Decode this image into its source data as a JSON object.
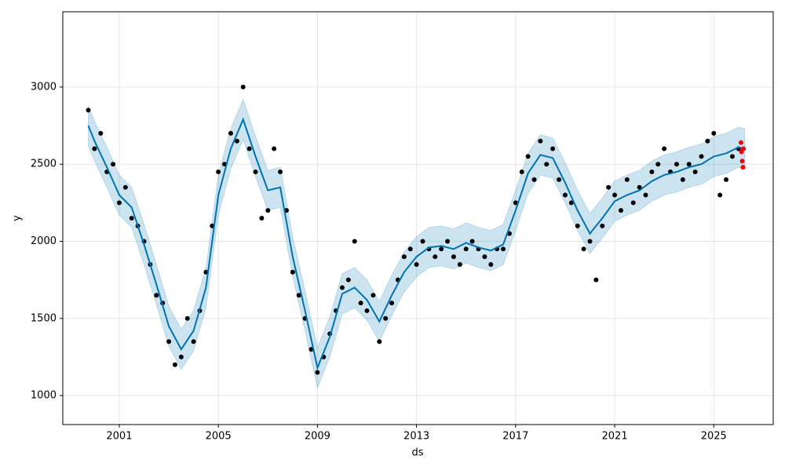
{
  "chart_data": {
    "type": "forecast",
    "xlabel": "ds",
    "ylabel": "y",
    "xlim": [
      1998.72,
      2027.4
    ],
    "ylim": [
      812,
      3488
    ],
    "xticks": [
      2001,
      2005,
      2009,
      2013,
      2017,
      2021,
      2025
    ],
    "yticks": [
      1000,
      1500,
      2000,
      2500,
      3000
    ],
    "grid": true,
    "x": [
      1999.75,
      2000,
      2000.5,
      2001,
      2001.5,
      2002,
      2002.5,
      2003,
      2003.5,
      2004,
      2004.5,
      2005,
      2005.5,
      2006,
      2006.5,
      2007,
      2007.5,
      2008,
      2008.5,
      2009,
      2009.5,
      2010,
      2010.5,
      2011,
      2011.5,
      2012,
      2012.5,
      2013,
      2013.5,
      2014,
      2014.5,
      2015,
      2015.5,
      2016,
      2016.5,
      2017,
      2017.5,
      2018,
      2018.5,
      2019,
      2019.5,
      2020,
      2020.5,
      2021,
      2021.5,
      2022,
      2022.5,
      2023,
      2023.5,
      2024,
      2024.5,
      2025,
      2025.5,
      2026,
      2026.25
    ],
    "yhat": {
      "color": "#0072b2",
      "values": [
        2750,
        2650,
        2480,
        2300,
        2220,
        1980,
        1720,
        1450,
        1300,
        1420,
        1700,
        2300,
        2600,
        2790,
        2550,
        2330,
        2350,
        1900,
        1550,
        1180,
        1380,
        1660,
        1700,
        1620,
        1480,
        1650,
        1800,
        1900,
        1960,
        1970,
        1950,
        1990,
        1960,
        1940,
        1980,
        2200,
        2440,
        2560,
        2540,
        2380,
        2200,
        2050,
        2150,
        2260,
        2300,
        2330,
        2390,
        2430,
        2450,
        2480,
        2500,
        2550,
        2570,
        2610,
        2600
      ]
    },
    "band": {
      "color": "#0072b2",
      "opacity": 0.2,
      "lower": [
        2620,
        2520,
        2350,
        2170,
        2090,
        1850,
        1590,
        1320,
        1170,
        1290,
        1570,
        2170,
        2470,
        2660,
        2420,
        2200,
        2220,
        1770,
        1420,
        1050,
        1250,
        1530,
        1570,
        1490,
        1350,
        1520,
        1670,
        1770,
        1830,
        1840,
        1820,
        1860,
        1830,
        1810,
        1850,
        2070,
        2310,
        2430,
        2410,
        2250,
        2070,
        1920,
        2020,
        2130,
        2170,
        2200,
        2260,
        2300,
        2320,
        2350,
        2370,
        2420,
        2440,
        2480,
        2470
      ],
      "upper": [
        2880,
        2780,
        2610,
        2430,
        2350,
        2110,
        1850,
        1580,
        1430,
        1550,
        1830,
        2430,
        2730,
        2920,
        2680,
        2460,
        2480,
        2030,
        1680,
        1310,
        1510,
        1790,
        1830,
        1750,
        1610,
        1780,
        1930,
        2030,
        2090,
        2100,
        2080,
        2120,
        2090,
        2070,
        2110,
        2330,
        2570,
        2690,
        2670,
        2510,
        2330,
        2180,
        2280,
        2390,
        2430,
        2460,
        2520,
        2560,
        2580,
        2610,
        2630,
        2680,
        2700,
        2740,
        2730
      ]
    },
    "observed": {
      "color": "#000000",
      "x": [
        1999.75,
        2000,
        2000.25,
        2000.5,
        2000.75,
        2001,
        2001.25,
        2001.5,
        2001.75,
        2002,
        2002.25,
        2002.5,
        2002.75,
        2003,
        2003.25,
        2003.5,
        2003.75,
        2004,
        2004.25,
        2004.5,
        2004.75,
        2005,
        2005.25,
        2005.5,
        2005.75,
        2006,
        2006.25,
        2006.5,
        2006.75,
        2007,
        2007.25,
        2007.5,
        2007.75,
        2008,
        2008.25,
        2008.5,
        2008.75,
        2009,
        2009.25,
        2009.5,
        2009.75,
        2010,
        2010.25,
        2010.5,
        2010.75,
        2011,
        2011.25,
        2011.5,
        2011.75,
        2012,
        2012.25,
        2012.5,
        2012.75,
        2013,
        2013.25,
        2013.5,
        2013.75,
        2014,
        2014.25,
        2014.5,
        2014.75,
        2015,
        2015.25,
        2015.5,
        2015.75,
        2016,
        2016.25,
        2016.5,
        2016.75,
        2017,
        2017.25,
        2017.5,
        2017.75,
        2018,
        2018.25,
        2018.5,
        2018.75,
        2019,
        2019.25,
        2019.5,
        2019.75,
        2020,
        2020.25,
        2020.5,
        2020.75,
        2021,
        2021.25,
        2021.5,
        2021.75,
        2022,
        2022.25,
        2022.5,
        2022.75,
        2023,
        2023.25,
        2023.5,
        2023.75,
        2024,
        2024.25,
        2024.5,
        2024.75,
        2025,
        2025.25,
        2025.5,
        2025.75,
        2026
      ],
      "values": [
        2850,
        2600,
        2700,
        2450,
        2500,
        2250,
        2350,
        2150,
        2100,
        2000,
        1850,
        1650,
        1600,
        1350,
        1200,
        1250,
        1500,
        1350,
        1550,
        1800,
        2100,
        2450,
        2500,
        2700,
        2650,
        3000,
        2600,
        2450,
        2150,
        2200,
        2600,
        2450,
        2200,
        1800,
        1650,
        1500,
        1300,
        1150,
        1250,
        1400,
        1550,
        1700,
        1750,
        2000,
        1600,
        1550,
        1650,
        1350,
        1500,
        1600,
        1750,
        1900,
        1950,
        1850,
        2000,
        1950,
        1900,
        1950,
        2000,
        1900,
        1850,
        1950,
        2000,
        1950,
        1900,
        1850,
        1950,
        1950,
        2050,
        2250,
        2450,
        2550,
        2400,
        2650,
        2500,
        2600,
        2400,
        2300,
        2250,
        2100,
        1950,
        2000,
        1750,
        2100,
        2350,
        2300,
        2200,
        2400,
        2250,
        2350,
        2300,
        2450,
        2500,
        2600,
        2450,
        2500,
        2400,
        2500,
        2450,
        2550,
        2650,
        2700,
        2300,
        2400,
        2550,
        2600
      ]
    },
    "recent": {
      "color": "#ff0000",
      "x": [
        2026.1,
        2026.12,
        2026.15,
        2026.18,
        2026.2
      ],
      "values": [
        2640,
        2580,
        2520,
        2480,
        2600
      ]
    }
  }
}
